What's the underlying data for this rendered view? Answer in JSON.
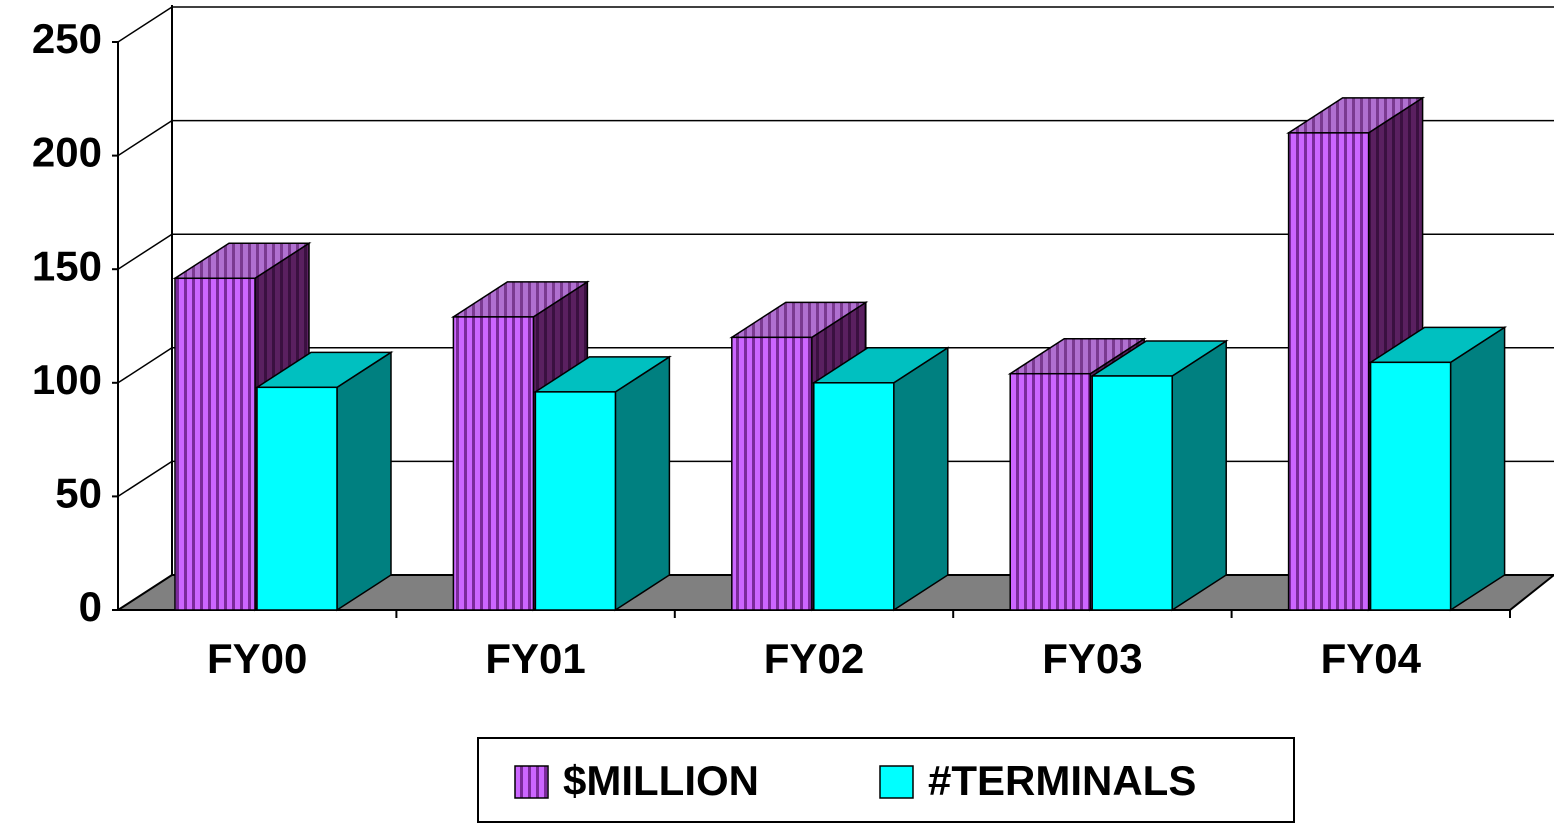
{
  "chart_data": {
    "type": "bar3d",
    "categories": [
      "FY00",
      "FY01",
      "FY02",
      "FY03",
      "FY04"
    ],
    "series": [
      {
        "name": "$MILLION",
        "color": "#cc66ff",
        "values": [
          146,
          129,
          120,
          104,
          210
        ]
      },
      {
        "name": "#TERMINALS",
        "color": "#00ffff",
        "values": [
          98,
          96,
          100,
          103,
          109
        ]
      }
    ],
    "ylim": [
      0,
      250
    ],
    "yticks": [
      0,
      50,
      100,
      150,
      200,
      250
    ],
    "grid": true,
    "legend": "bottom"
  }
}
